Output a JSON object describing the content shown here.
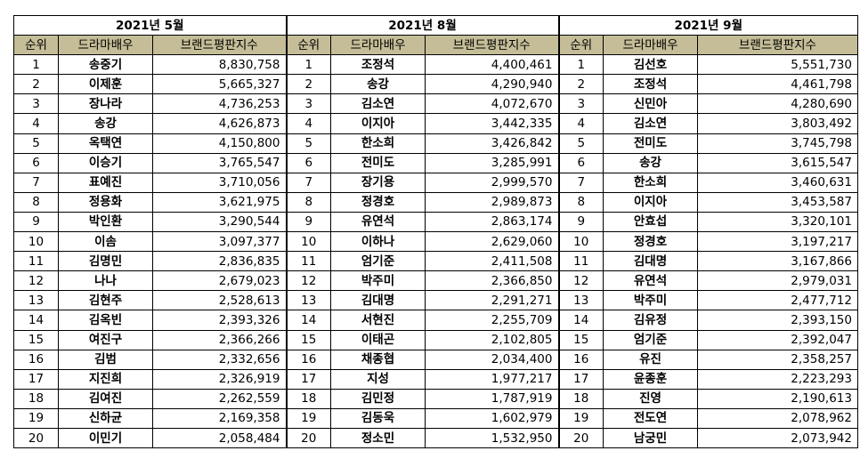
{
  "headers": {
    "rank": "순위",
    "name": "드라마배우",
    "score": "브랜드평판지수"
  },
  "months": [
    {
      "title": "2021년 5월",
      "rows": [
        [
          "1",
          "송중기",
          "8,830,758"
        ],
        [
          "2",
          "이제훈",
          "5,665,327"
        ],
        [
          "3",
          "장나라",
          "4,736,253"
        ],
        [
          "4",
          "송강",
          "4,626,873"
        ],
        [
          "5",
          "옥택연",
          "4,150,800"
        ],
        [
          "6",
          "이승기",
          "3,765,547"
        ],
        [
          "7",
          "표예진",
          "3,710,056"
        ],
        [
          "8",
          "정용화",
          "3,621,975"
        ],
        [
          "9",
          "박인환",
          "3,290,544"
        ],
        [
          "10",
          "이솜",
          "3,097,377"
        ],
        [
          "11",
          "김명민",
          "2,836,835"
        ],
        [
          "12",
          "나나",
          "2,679,023"
        ],
        [
          "13",
          "김현주",
          "2,528,613"
        ],
        [
          "14",
          "김옥빈",
          "2,393,326"
        ],
        [
          "15",
          "여진구",
          "2,366,266"
        ],
        [
          "16",
          "김범",
          "2,332,656"
        ],
        [
          "17",
          "지진희",
          "2,326,919"
        ],
        [
          "18",
          "김여진",
          "2,262,559"
        ],
        [
          "19",
          "신하균",
          "2,169,358"
        ],
        [
          "20",
          "이민기",
          "2,058,484"
        ]
      ]
    },
    {
      "title": "2021년 8월",
      "rows": [
        [
          "1",
          "조정석",
          "4,400,461"
        ],
        [
          "2",
          "송강",
          "4,290,940"
        ],
        [
          "3",
          "김소연",
          "4,072,670"
        ],
        [
          "4",
          "이지아",
          "3,442,335"
        ],
        [
          "5",
          "한소희",
          "3,426,842"
        ],
        [
          "6",
          "전미도",
          "3,285,991"
        ],
        [
          "7",
          "장기용",
          "2,999,570"
        ],
        [
          "8",
          "정경호",
          "2,989,873"
        ],
        [
          "9",
          "유연석",
          "2,863,174"
        ],
        [
          "10",
          "이하나",
          "2,629,060"
        ],
        [
          "11",
          "엄기준",
          "2,411,508"
        ],
        [
          "12",
          "박주미",
          "2,366,850"
        ],
        [
          "13",
          "김대명",
          "2,291,271"
        ],
        [
          "14",
          "서현진",
          "2,255,709"
        ],
        [
          "15",
          "이태곤",
          "2,102,805"
        ],
        [
          "16",
          "채종협",
          "2,034,400"
        ],
        [
          "17",
          "지성",
          "1,977,217"
        ],
        [
          "18",
          "김민정",
          "1,787,919"
        ],
        [
          "19",
          "김동욱",
          "1,602,979"
        ],
        [
          "20",
          "정소민",
          "1,532,950"
        ]
      ]
    },
    {
      "title": "2021년 9월",
      "rows": [
        [
          "1",
          "김선호",
          "5,551,730"
        ],
        [
          "2",
          "조정석",
          "4,461,798"
        ],
        [
          "3",
          "신민아",
          "4,280,690"
        ],
        [
          "4",
          "김소연",
          "3,803,492"
        ],
        [
          "5",
          "전미도",
          "3,745,798"
        ],
        [
          "6",
          "송강",
          "3,615,547"
        ],
        [
          "7",
          "한소희",
          "3,460,631"
        ],
        [
          "8",
          "이지아",
          "3,453,587"
        ],
        [
          "9",
          "안효섭",
          "3,320,101"
        ],
        [
          "10",
          "정경호",
          "3,197,217"
        ],
        [
          "11",
          "김대명",
          "3,167,866"
        ],
        [
          "12",
          "유연석",
          "2,979,031"
        ],
        [
          "13",
          "박주미",
          "2,477,712"
        ],
        [
          "14",
          "김유정",
          "2,393,150"
        ],
        [
          "15",
          "엄기준",
          "2,392,047"
        ],
        [
          "16",
          "유진",
          "2,358,257"
        ],
        [
          "17",
          "윤종훈",
          "2,223,293"
        ],
        [
          "18",
          "진영",
          "2,190,613"
        ],
        [
          "19",
          "전도연",
          "2,078,962"
        ],
        [
          "20",
          "남궁민",
          "2,073,942"
        ]
      ]
    }
  ]
}
